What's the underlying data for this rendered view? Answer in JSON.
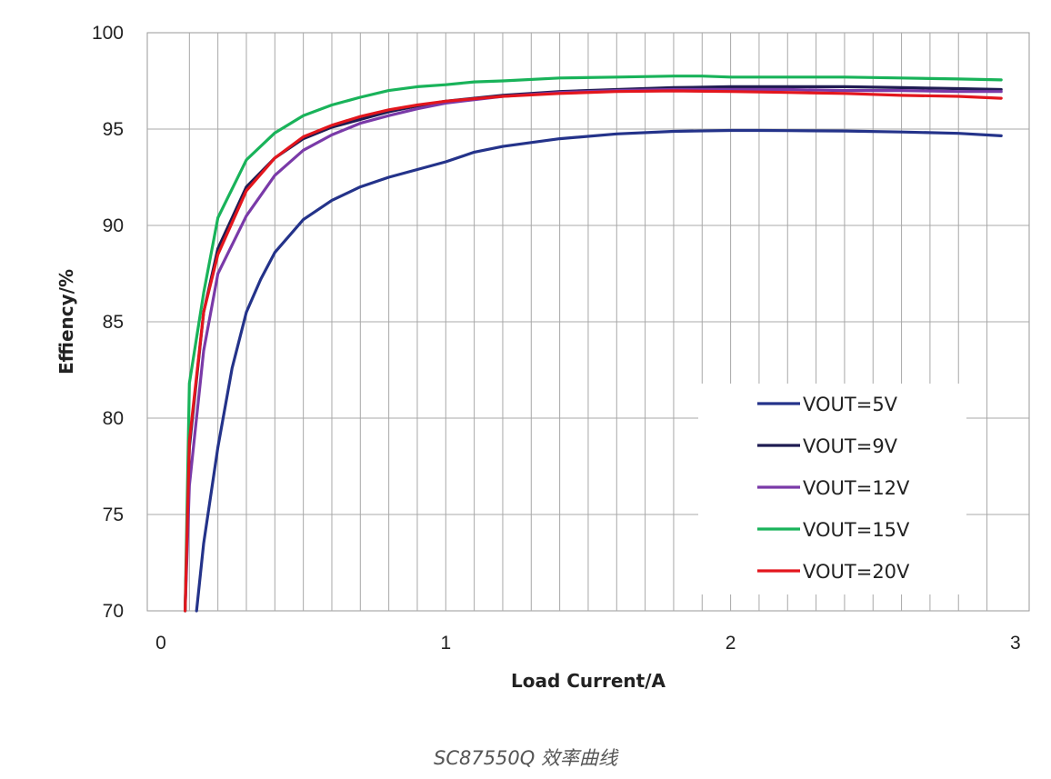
{
  "caption": "SC87550Q 效率曲线",
  "chart_data": {
    "type": "line",
    "title": "",
    "xlabel": "Load Current/A",
    "ylabel": "Effiency/%",
    "xlim": [
      0,
      3
    ],
    "ylim": [
      70,
      100
    ],
    "xticks": [
      0,
      1,
      2,
      3
    ],
    "yticks": [
      70,
      75,
      80,
      85,
      90,
      95,
      100
    ],
    "grid": true,
    "legend_position": "bottom-right",
    "series": [
      {
        "name": "VOUT=5V",
        "color": "#24338a",
        "points": [
          [
            0.125,
            70
          ],
          [
            0.15,
            73.5
          ],
          [
            0.2,
            78.5
          ],
          [
            0.25,
            82.6
          ],
          [
            0.3,
            85.5
          ],
          [
            0.35,
            87.2
          ],
          [
            0.4,
            88.6
          ],
          [
            0.5,
            90.3
          ],
          [
            0.6,
            91.3
          ],
          [
            0.7,
            92
          ],
          [
            0.8,
            92.5
          ],
          [
            0.9,
            92.9
          ],
          [
            1.0,
            93.3
          ],
          [
            1.1,
            93.8
          ],
          [
            1.2,
            94.1
          ],
          [
            1.4,
            94.5
          ],
          [
            1.6,
            94.75
          ],
          [
            1.8,
            94.88
          ],
          [
            2.0,
            94.93
          ],
          [
            2.1,
            94.93
          ],
          [
            2.2,
            94.92
          ],
          [
            2.4,
            94.9
          ],
          [
            2.6,
            94.85
          ],
          [
            2.8,
            94.78
          ],
          [
            2.95,
            94.65
          ]
        ]
      },
      {
        "name": "VOUT=9V",
        "color": "#1f1c52",
        "points": [
          [
            0.085,
            70
          ],
          [
            0.1,
            78.5
          ],
          [
            0.15,
            85.5
          ],
          [
            0.2,
            88.8
          ],
          [
            0.3,
            92
          ],
          [
            0.4,
            93.5
          ],
          [
            0.5,
            94.5
          ],
          [
            0.6,
            95.1
          ],
          [
            0.7,
            95.5
          ],
          [
            0.8,
            95.9
          ],
          [
            0.9,
            96.2
          ],
          [
            1.0,
            96.45
          ],
          [
            1.2,
            96.75
          ],
          [
            1.4,
            96.95
          ],
          [
            1.6,
            97.05
          ],
          [
            1.8,
            97.15
          ],
          [
            2.0,
            97.2
          ],
          [
            2.2,
            97.2
          ],
          [
            2.4,
            97.2
          ],
          [
            2.6,
            97.15
          ],
          [
            2.8,
            97.1
          ],
          [
            2.95,
            97.05
          ]
        ]
      },
      {
        "name": "VOUT=12V",
        "color": "#7a3aa8",
        "points": [
          [
            0.085,
            70
          ],
          [
            0.1,
            76.5
          ],
          [
            0.15,
            83.5
          ],
          [
            0.2,
            87.5
          ],
          [
            0.3,
            90.5
          ],
          [
            0.4,
            92.6
          ],
          [
            0.5,
            93.9
          ],
          [
            0.6,
            94.7
          ],
          [
            0.7,
            95.3
          ],
          [
            0.8,
            95.7
          ],
          [
            0.9,
            96.05
          ],
          [
            1.0,
            96.35
          ],
          [
            1.2,
            96.7
          ],
          [
            1.4,
            96.9
          ],
          [
            1.6,
            97
          ],
          [
            1.8,
            97.05
          ],
          [
            2.0,
            97.05
          ],
          [
            2.2,
            97.05
          ],
          [
            2.4,
            97.0
          ],
          [
            2.6,
            97.0
          ],
          [
            2.8,
            96.95
          ],
          [
            2.95,
            96.95
          ]
        ]
      },
      {
        "name": "VOUT=15V",
        "color": "#19b35a",
        "points": [
          [
            0.085,
            70
          ],
          [
            0.1,
            81.8
          ],
          [
            0.15,
            86.5
          ],
          [
            0.2,
            90.4
          ],
          [
            0.3,
            93.4
          ],
          [
            0.4,
            94.8
          ],
          [
            0.5,
            95.7
          ],
          [
            0.6,
            96.25
          ],
          [
            0.7,
            96.65
          ],
          [
            0.8,
            97
          ],
          [
            0.9,
            97.2
          ],
          [
            1.0,
            97.3
          ],
          [
            1.1,
            97.45
          ],
          [
            1.2,
            97.5
          ],
          [
            1.4,
            97.65
          ],
          [
            1.6,
            97.7
          ],
          [
            1.8,
            97.75
          ],
          [
            1.9,
            97.75
          ],
          [
            2.0,
            97.7
          ],
          [
            2.2,
            97.7
          ],
          [
            2.4,
            97.7
          ],
          [
            2.6,
            97.65
          ],
          [
            2.8,
            97.6
          ],
          [
            2.95,
            97.55
          ]
        ]
      },
      {
        "name": "VOUT=20V",
        "color": "#e3161d",
        "points": [
          [
            0.085,
            70
          ],
          [
            0.1,
            78.8
          ],
          [
            0.15,
            85.5
          ],
          [
            0.2,
            88.5
          ],
          [
            0.3,
            91.8
          ],
          [
            0.4,
            93.5
          ],
          [
            0.5,
            94.6
          ],
          [
            0.6,
            95.2
          ],
          [
            0.7,
            95.65
          ],
          [
            0.8,
            96
          ],
          [
            0.9,
            96.25
          ],
          [
            1.0,
            96.45
          ],
          [
            1.2,
            96.7
          ],
          [
            1.4,
            96.85
          ],
          [
            1.6,
            96.95
          ],
          [
            1.8,
            96.98
          ],
          [
            2.0,
            96.95
          ],
          [
            2.2,
            96.9
          ],
          [
            2.4,
            96.85
          ],
          [
            2.6,
            96.75
          ],
          [
            2.8,
            96.7
          ],
          [
            2.95,
            96.6
          ]
        ]
      }
    ]
  }
}
